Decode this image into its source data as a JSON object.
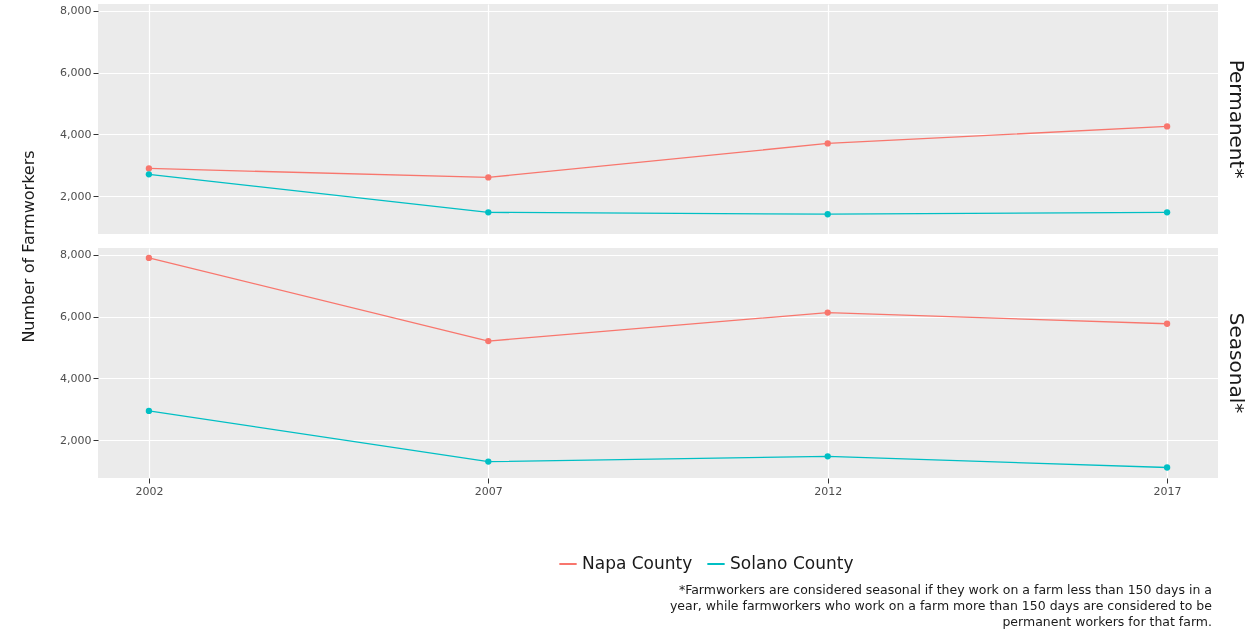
{
  "chart_data": [
    {
      "type": "line",
      "title": "Permanent*",
      "ylabel": "Number of Farmworkers",
      "x": [
        2002,
        2007,
        2012,
        2017
      ],
      "xlim": [
        2001.25,
        2017.75
      ],
      "xticks": [
        2002,
        2007,
        2012,
        2017
      ],
      "ylim": [
        780,
        8220
      ],
      "yticks": [
        {
          "value": 2000,
          "label": "2,000"
        },
        {
          "value": 4000,
          "label": "4,000"
        },
        {
          "value": 6000,
          "label": "6,000"
        },
        {
          "value": 8000,
          "label": "8,000"
        }
      ],
      "tick_labels": "y",
      "grid": true,
      "marker": "circle",
      "line_style": "solid",
      "legend": "bottom",
      "series": [
        {
          "name": "Napa County",
          "color": "#f8766d",
          "values": [
            2900,
            2610,
            3710,
            4260
          ]
        },
        {
          "name": "Solano County",
          "color": "#00bfc4",
          "values": [
            2710,
            1480,
            1420,
            1480
          ]
        }
      ]
    },
    {
      "type": "line",
      "title": "Seasonal*",
      "x": [
        2002,
        2007,
        2012,
        2017
      ],
      "xlim": [
        2001.25,
        2017.75
      ],
      "xticks": [
        2002,
        2007,
        2012,
        2017
      ],
      "ylim": [
        780,
        8220
      ],
      "yticks": [
        {
          "value": 2000,
          "label": "2,000"
        },
        {
          "value": 4000,
          "label": "4,000"
        },
        {
          "value": 6000,
          "label": "6,000"
        },
        {
          "value": 8000,
          "label": "8,000"
        }
      ],
      "grid": true,
      "marker": "circle",
      "line_style": "solid",
      "legend": "bottom",
      "annotations": [
        "*Farmworkers are considered seasonal if they work on a farm less than 150 days in a year, while farmworkers who work on a farm more than 150 days are considered to be permanent workers for that farm."
      ],
      "series": [
        {
          "name": "Napa County",
          "color": "#f8766d",
          "values": [
            7900,
            5210,
            6130,
            5770
          ]
        },
        {
          "name": "Solano County",
          "color": "#00bfc4",
          "values": [
            2950,
            1310,
            1480,
            1120
          ]
        }
      ]
    }
  ]
}
